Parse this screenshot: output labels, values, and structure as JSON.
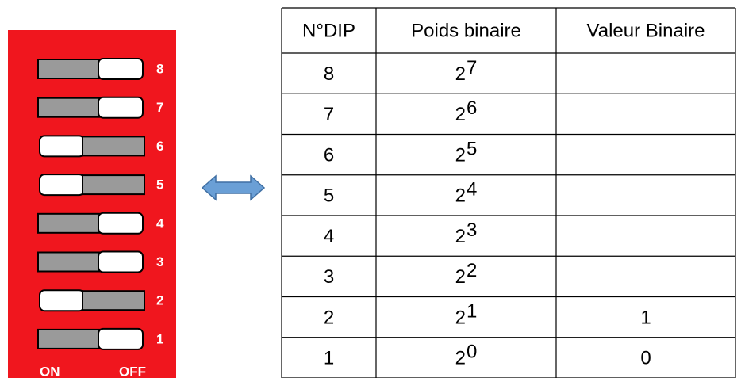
{
  "switch": {
    "labels": [
      "8",
      "7",
      "6",
      "5",
      "4",
      "3",
      "2",
      "1"
    ],
    "on_label": "ON",
    "off_label": "OFF"
  },
  "table": {
    "header": [
      "N°DIP",
      "Poids binaire",
      "Valeur Binaire"
    ],
    "rows": [
      {
        "dip": "8",
        "base": "2",
        "exp": "7"
      },
      {
        "dip": "7",
        "base": "2",
        "exp": "6"
      },
      {
        "dip": "6",
        "base": "2",
        "exp": "5"
      },
      {
        "dip": "5",
        "base": "2",
        "exp": "4"
      },
      {
        "dip": "4",
        "base": "2",
        "exp": "3"
      },
      {
        "dip": "3",
        "base": "2",
        "exp": "2"
      },
      {
        "dip": "2",
        "base": "2",
        "exp": "1",
        "value": "1"
      },
      {
        "dip": "1",
        "base": "2",
        "exp": "0",
        "value": "0"
      }
    ]
  }
}
